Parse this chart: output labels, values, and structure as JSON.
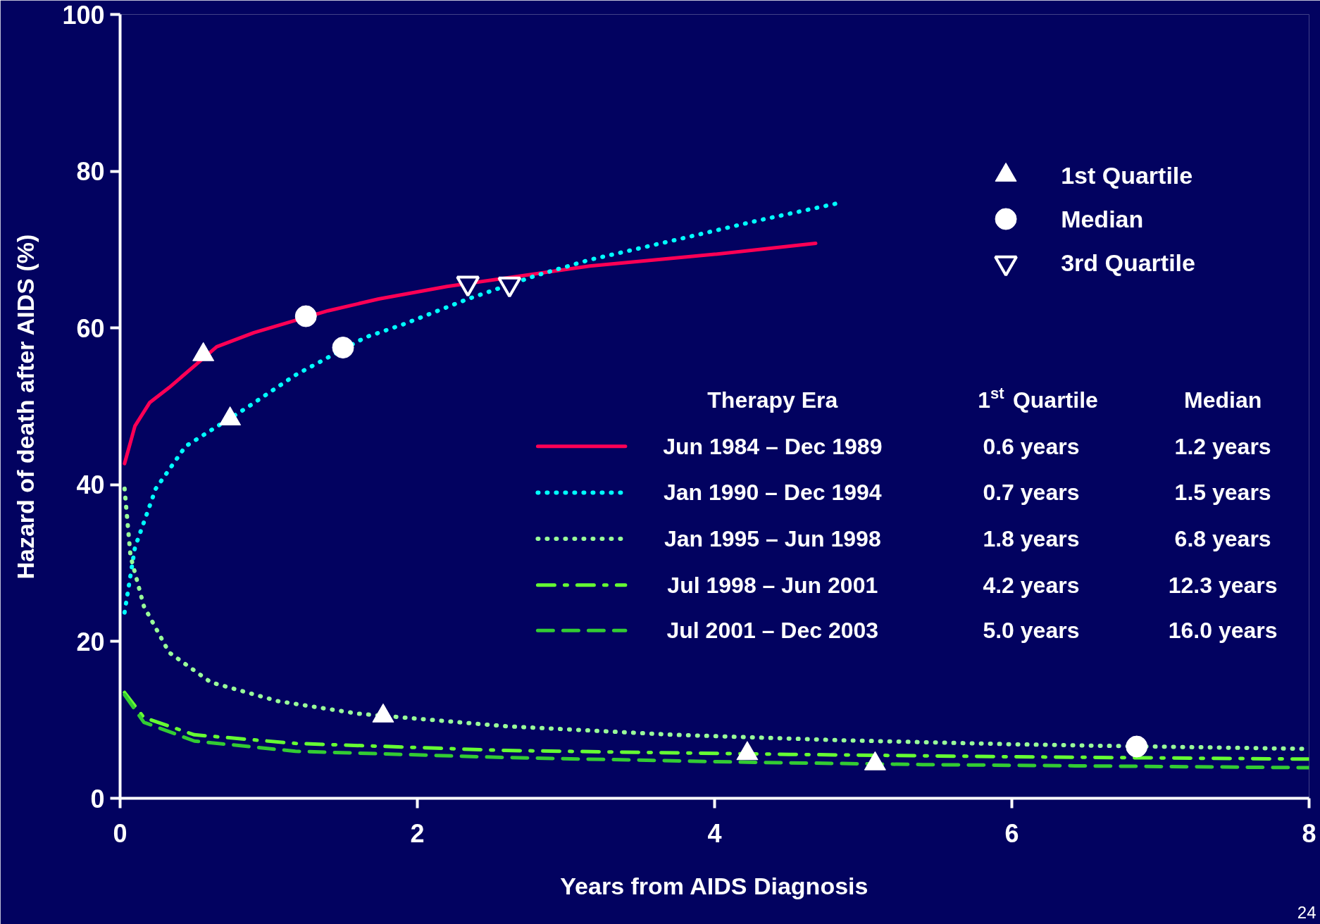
{
  "chart_data": {
    "type": "line",
    "xlabel": "Years from AIDS Diagnosis",
    "ylabel": "Hazard of death after AIDS (%)",
    "xlim": [
      0,
      8
    ],
    "ylim": [
      0,
      100
    ],
    "xticks": [
      0,
      2,
      4,
      6,
      8
    ],
    "yticks": [
      0,
      20,
      40,
      60,
      80,
      100
    ],
    "grid": false,
    "legend": "right",
    "legend_title": "Therapy Era",
    "series": [
      {
        "name": "Jun 1984 – Dec 1989",
        "color": "#ff0055",
        "line_style": "solid",
        "x": [
          0.03,
          0.1,
          0.2,
          0.33,
          0.65,
          0.9,
          1.4,
          1.74,
          2.2,
          3.16,
          4.0,
          4.68
        ],
        "values": [
          42.7,
          47.5,
          50.5,
          52.4,
          57.6,
          59.4,
          62.2,
          63.7,
          65.3,
          67.9,
          69.4,
          70.8
        ]
      },
      {
        "name": "Jan 1990 – Dec 1994",
        "color": "#00ffff",
        "line_style": "dotted",
        "x": [
          0.03,
          0.1,
          0.24,
          0.44,
          0.85,
          1.18,
          1.65,
          1.91,
          2.34,
          2.8,
          3.16,
          3.73,
          4.29,
          4.85
        ],
        "values": [
          23.7,
          32,
          39.5,
          44.9,
          49.8,
          54,
          58.8,
          60.5,
          63.7,
          66.7,
          68.7,
          71.2,
          73.7,
          76
        ]
      },
      {
        "name": "Jan 1995 – Jun 1998",
        "color": "#99ff99",
        "line_style": "dotted",
        "x": [
          0.03,
          0.07,
          0.16,
          0.33,
          0.61,
          1.06,
          1.6,
          2.59,
          3.73,
          4.86,
          5.99,
          6.6,
          8.0
        ],
        "values": [
          39.5,
          30.9,
          24.5,
          18.6,
          14.8,
          12.4,
          10.8,
          9.2,
          8.1,
          7.4,
          6.9,
          6.7,
          6.3
        ]
      },
      {
        "name": "Jul 1998 – Jun 2001",
        "color": "#66ff33",
        "line_style": "dashdot",
        "x": [
          0.03,
          0.16,
          0.5,
          1.18,
          2.59,
          4.5,
          5.99,
          8.0
        ],
        "values": [
          13.5,
          10.3,
          8.1,
          7.0,
          6.1,
          5.6,
          5.3,
          5.0
        ]
      },
      {
        "name": "Jul 2001 – Dec 2003",
        "color": "#33cc33",
        "line_style": "dashed",
        "x": [
          0.03,
          0.16,
          0.5,
          1.18,
          2.59,
          4.22,
          5.4,
          8.0
        ],
        "values": [
          13.2,
          9.7,
          7.3,
          6.0,
          5.2,
          4.6,
          4.3,
          3.9
        ]
      },
      {
        "name": "1st Quartile",
        "type": "scatter",
        "marker": "triangle",
        "color": "#ffffff",
        "x": [
          0.56,
          0.74,
          1.77,
          4.22,
          5.08
        ],
        "values": [
          56.6,
          48.4,
          10.5,
          5.7,
          4.4
        ]
      },
      {
        "name": "Median",
        "type": "scatter",
        "marker": "circle",
        "color": "#ffffff",
        "x": [
          1.25,
          1.5,
          6.84
        ],
        "values": [
          61.5,
          57.5,
          6.6
        ]
      },
      {
        "name": "3rd Quartile",
        "type": "scatter",
        "color": "#ffffff",
        "x": [
          2.34,
          2.62
        ],
        "values": [
          65.7,
          65.6
        ]
      }
    ],
    "annotations": [
      "1$^{st}$ Quartile",
      "Median",
      "0.6 years",
      "1.2 years",
      "0.7 years",
      "1.5 years",
      "1.8 years",
      "6.8 years",
      "4.2 years",
      "12.3 years",
      "5.0 years",
      "16.0 years",
      "24"
    ]
  }
}
